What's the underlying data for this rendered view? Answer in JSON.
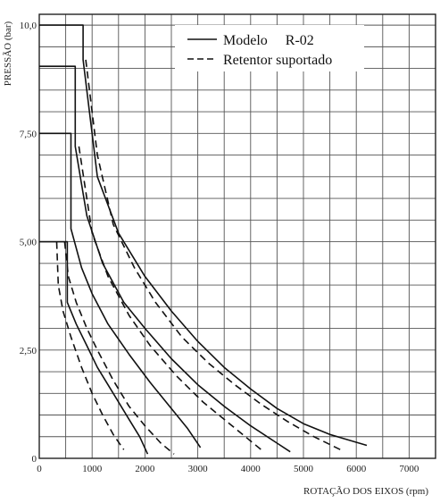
{
  "chart_data": {
    "type": "line",
    "xlabel": "ROTAÇÃO DOS EIXOS (rpm)",
    "ylabel": "PRESSÃO (bar)",
    "xlim": [
      0,
      7500
    ],
    "ylim": [
      0,
      10.25
    ],
    "grid": true,
    "legend_position": "top-right",
    "x_ticks": [
      {
        "value": 0,
        "label": "0"
      },
      {
        "value": 1000,
        "label": "1000"
      },
      {
        "value": 2000,
        "label": "2000"
      },
      {
        "value": 3000,
        "label": "3000"
      },
      {
        "value": 4000,
        "label": "4000"
      },
      {
        "value": 5000,
        "label": "5000"
      },
      {
        "value": 6000,
        "label": "6000"
      },
      {
        "value": 7000,
        "label": "7000"
      }
    ],
    "y_ticks": [
      {
        "value": 0,
        "label": "0"
      },
      {
        "value": 2.5,
        "label": "2,50"
      },
      {
        "value": 5.0,
        "label": "5,00"
      },
      {
        "value": 7.5,
        "label": "7,50"
      },
      {
        "value": 10.0,
        "label": "10,0"
      }
    ],
    "legend": [
      {
        "label": "Modelo     R-02",
        "style": "solid"
      },
      {
        "label": "Retentor suportado",
        "style": "dashed"
      }
    ],
    "series": [
      {
        "style": "solid",
        "points": [
          [
            0,
            10.0
          ],
          [
            830,
            10.0
          ],
          [
            830,
            9.2
          ],
          [
            1100,
            6.5
          ],
          [
            1500,
            5.2
          ],
          [
            2000,
            4.2
          ],
          [
            2500,
            3.4
          ],
          [
            3000,
            2.7
          ],
          [
            3500,
            2.1
          ],
          [
            4000,
            1.6
          ],
          [
            4500,
            1.15
          ],
          [
            5000,
            0.8
          ],
          [
            5500,
            0.55
          ],
          [
            6200,
            0.3
          ]
        ]
      },
      {
        "style": "solid",
        "points": [
          [
            0,
            9.05
          ],
          [
            680,
            9.05
          ],
          [
            680,
            7.2
          ],
          [
            900,
            5.6
          ],
          [
            1200,
            4.5
          ],
          [
            1600,
            3.6
          ],
          [
            2000,
            3.0
          ],
          [
            2500,
            2.3
          ],
          [
            3000,
            1.7
          ],
          [
            3500,
            1.2
          ],
          [
            4000,
            0.75
          ],
          [
            4500,
            0.35
          ],
          [
            4750,
            0.15
          ]
        ]
      },
      {
        "style": "solid",
        "points": [
          [
            0,
            7.5
          ],
          [
            600,
            7.5
          ],
          [
            600,
            5.3
          ],
          [
            800,
            4.4
          ],
          [
            1000,
            3.8
          ],
          [
            1300,
            3.1
          ],
          [
            1700,
            2.4
          ],
          [
            2100,
            1.75
          ],
          [
            2500,
            1.15
          ],
          [
            2800,
            0.7
          ],
          [
            3050,
            0.25
          ]
        ]
      },
      {
        "style": "solid",
        "points": [
          [
            0,
            5.0
          ],
          [
            530,
            5.0
          ],
          [
            530,
            3.6
          ],
          [
            700,
            3.1
          ],
          [
            900,
            2.6
          ],
          [
            1100,
            2.1
          ],
          [
            1400,
            1.5
          ],
          [
            1700,
            0.9
          ],
          [
            1900,
            0.5
          ],
          [
            2050,
            0.1
          ]
        ]
      },
      {
        "style": "dashed",
        "points": [
          [
            880,
            9.2
          ],
          [
            1100,
            7.0
          ],
          [
            1400,
            5.4
          ],
          [
            1800,
            4.4
          ],
          [
            2200,
            3.6
          ],
          [
            2700,
            2.8
          ],
          [
            3200,
            2.2
          ],
          [
            3700,
            1.7
          ],
          [
            4200,
            1.25
          ],
          [
            4700,
            0.85
          ],
          [
            5200,
            0.5
          ],
          [
            5700,
            0.2
          ]
        ]
      },
      {
        "style": "dashed",
        "points": [
          [
            750,
            7.2
          ],
          [
            1000,
            5.2
          ],
          [
            1300,
            4.2
          ],
          [
            1700,
            3.3
          ],
          [
            2100,
            2.6
          ],
          [
            2600,
            1.9
          ],
          [
            3100,
            1.3
          ],
          [
            3600,
            0.8
          ],
          [
            4000,
            0.4
          ],
          [
            4200,
            0.2
          ]
        ]
      },
      {
        "style": "dashed",
        "points": [
          [
            480,
            5.0
          ],
          [
            550,
            4.2
          ],
          [
            700,
            3.6
          ],
          [
            900,
            3.0
          ],
          [
            1100,
            2.5
          ],
          [
            1400,
            1.8
          ],
          [
            1700,
            1.2
          ],
          [
            2000,
            0.75
          ],
          [
            2300,
            0.35
          ],
          [
            2550,
            0.1
          ]
        ]
      },
      {
        "style": "dashed",
        "points": [
          [
            330,
            5.0
          ],
          [
            360,
            4.0
          ],
          [
            450,
            3.4
          ],
          [
            600,
            2.8
          ],
          [
            800,
            2.1
          ],
          [
            1000,
            1.5
          ],
          [
            1200,
            1.0
          ],
          [
            1400,
            0.55
          ],
          [
            1600,
            0.2
          ]
        ]
      }
    ]
  }
}
